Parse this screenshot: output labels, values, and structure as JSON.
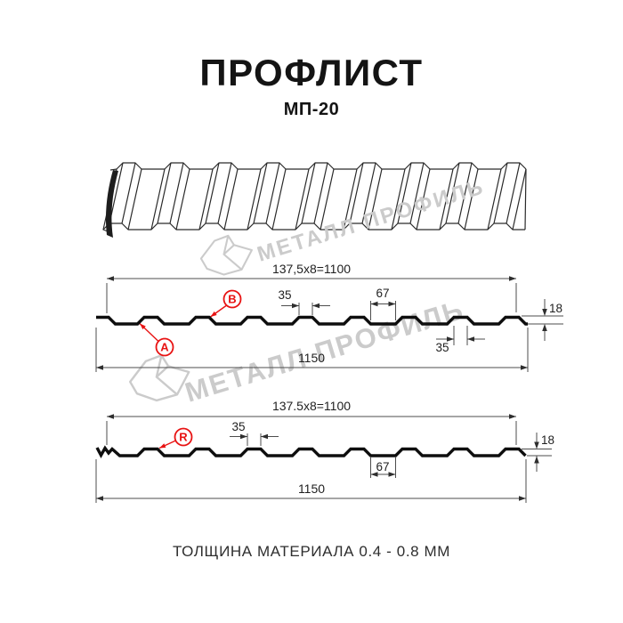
{
  "title": "ПРОФЛИСТ",
  "subtitle": "МП-20",
  "watermark": {
    "text": "МЕТАЛЛ ПРОФИЛЬ"
  },
  "footer": {
    "caption": "ТОЛЩИНА МАТЕРИАЛА 0.4 - 0.8 ММ"
  },
  "colors": {
    "accent_red": "#e81313",
    "profile_black": "#0e0e0e",
    "dimension_gray": "#4d4d4d",
    "watermark_gray": "#cbcbcb"
  },
  "section1": {
    "coverage_width": "137,5x8=1100",
    "overall_width": "1150",
    "crest_width": "35",
    "valley_width": "67",
    "profile_height": "18",
    "crest_width_bottom": "35",
    "label_a": "A",
    "label_b": "B"
  },
  "section2": {
    "coverage_width": "137.5x8=1100",
    "overall_width": "1150",
    "crest_width": "35",
    "valley_width": "67",
    "profile_height": "18",
    "label_r": "R"
  }
}
